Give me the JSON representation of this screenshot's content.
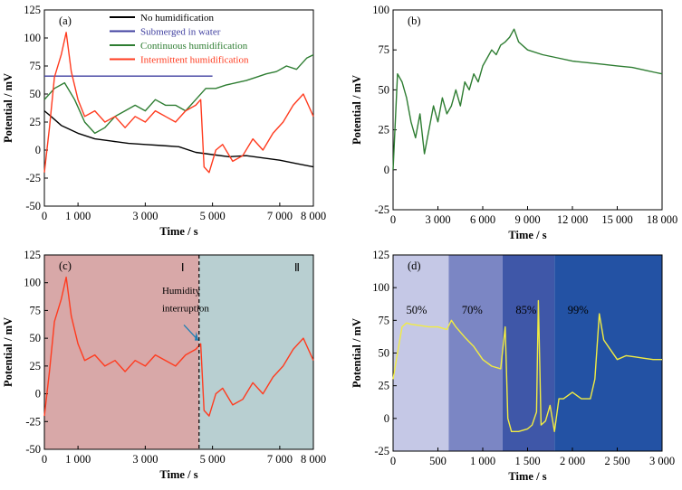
{
  "chart_data": [
    {
      "type": "line",
      "panel_label": "(a)",
      "xlabel": "Time / s",
      "ylabel": "Potential / mV",
      "xlim": [
        0,
        8000
      ],
      "ylim": [
        -50,
        125
      ],
      "xticks": [
        0,
        1000,
        3000,
        5000,
        7000,
        8000
      ],
      "xtick_labels": [
        "0",
        "1 000",
        "3 000",
        "5 000",
        "7 000",
        "8 000"
      ],
      "yticks": [
        -50,
        -25,
        0,
        25,
        50,
        75,
        100,
        125
      ],
      "legend_position": "top-right",
      "series": [
        {
          "name": "No humidification",
          "color": "#000000",
          "x": [
            0,
            200,
            500,
            1000,
            1500,
            2000,
            2500,
            3000,
            3500,
            4000,
            4500,
            5000,
            5500,
            6000,
            6500,
            7000,
            7500,
            8000
          ],
          "y": [
            35,
            30,
            22,
            15,
            10,
            8,
            6,
            5,
            4,
            3,
            -2,
            -4,
            -6,
            -5,
            -7,
            -9,
            -12,
            -15
          ]
        },
        {
          "name": "Submerged in water",
          "color": "#4040a0",
          "x": [
            0,
            5000
          ],
          "y": [
            66,
            66
          ]
        },
        {
          "name": "Continuous humidification",
          "color": "#2e7d32",
          "x": [
            0,
            300,
            600,
            900,
            1200,
            1500,
            1800,
            2100,
            2400,
            2700,
            3000,
            3300,
            3600,
            3900,
            4200,
            4500,
            4800,
            5100,
            5400,
            5700,
            6000,
            6300,
            6600,
            6900,
            7200,
            7500,
            7800,
            8000
          ],
          "y": [
            45,
            55,
            60,
            45,
            25,
            15,
            20,
            30,
            35,
            40,
            35,
            45,
            40,
            40,
            35,
            45,
            55,
            55,
            58,
            60,
            62,
            65,
            68,
            70,
            75,
            72,
            82,
            85
          ]
        },
        {
          "name": "Intermittent humidification",
          "color": "#ff3b1f",
          "x": [
            0,
            150,
            300,
            500,
            650,
            800,
            1000,
            1200,
            1500,
            1800,
            2100,
            2400,
            2700,
            3000,
            3300,
            3600,
            3900,
            4200,
            4500,
            4650,
            4750,
            4900,
            5100,
            5300,
            5600,
            5900,
            6200,
            6500,
            6800,
            7100,
            7400,
            7700,
            8000
          ],
          "y": [
            -20,
            20,
            65,
            85,
            105,
            70,
            45,
            30,
            35,
            25,
            30,
            20,
            30,
            25,
            35,
            30,
            25,
            35,
            40,
            45,
            -15,
            -20,
            0,
            5,
            -10,
            -5,
            10,
            0,
            15,
            25,
            40,
            50,
            30
          ]
        }
      ]
    },
    {
      "type": "line",
      "panel_label": "(b)",
      "xlabel": "Time / s",
      "ylabel": "Potential / mV",
      "xlim": [
        0,
        18000
      ],
      "ylim": [
        -25,
        100
      ],
      "xticks": [
        0,
        3000,
        6000,
        9000,
        12000,
        15000,
        18000
      ],
      "xtick_labels": [
        "0",
        "3 000",
        "6 000",
        "9 000",
        "12 000",
        "15 000",
        "18 000"
      ],
      "yticks": [
        -25,
        0,
        25,
        50,
        75,
        100
      ],
      "series": [
        {
          "name": "",
          "color": "#2e7d32",
          "x": [
            0,
            300,
            600,
            900,
            1200,
            1500,
            1800,
            2100,
            2400,
            2700,
            3000,
            3300,
            3600,
            3900,
            4200,
            4500,
            4800,
            5100,
            5400,
            5700,
            6000,
            6300,
            6600,
            6900,
            7200,
            7500,
            7800,
            8100,
            8400,
            9000,
            10000,
            11000,
            12000,
            13000,
            14000,
            15000,
            16000,
            17000,
            17500,
            18000
          ],
          "y": [
            0,
            60,
            55,
            45,
            30,
            20,
            35,
            10,
            25,
            40,
            30,
            45,
            35,
            40,
            50,
            40,
            55,
            50,
            60,
            55,
            65,
            70,
            75,
            72,
            78,
            80,
            83,
            88,
            80,
            75,
            72,
            70,
            68,
            67,
            66,
            65,
            64,
            62,
            61,
            60
          ]
        }
      ]
    },
    {
      "type": "line",
      "panel_label": "(c)",
      "xlabel": "Time / s",
      "ylabel": "Potential / mV",
      "xlim": [
        0,
        8000
      ],
      "ylim": [
        -50,
        125
      ],
      "xticks": [
        0,
        1000,
        3000,
        5000,
        7000,
        8000
      ],
      "xtick_labels": [
        "0",
        "1 000",
        "3 000",
        "5 000",
        "7 000",
        "8 000"
      ],
      "yticks": [
        -50,
        -25,
        0,
        25,
        50,
        75,
        100,
        125
      ],
      "regions": [
        {
          "label": "Ⅰ",
          "from": 0,
          "to": 4600,
          "color": "#d8a8a8"
        },
        {
          "label": "Ⅱ",
          "from": 4600,
          "to": 8000,
          "color": "#b8cfd1"
        }
      ],
      "annotation": "Humidity interruption",
      "series": [
        {
          "name": "",
          "color": "#ff3b1f",
          "x": [
            0,
            150,
            300,
            500,
            650,
            800,
            1000,
            1200,
            1500,
            1800,
            2100,
            2400,
            2700,
            3000,
            3300,
            3600,
            3900,
            4200,
            4500,
            4650,
            4750,
            4900,
            5100,
            5300,
            5600,
            5900,
            6200,
            6500,
            6800,
            7100,
            7400,
            7700,
            8000
          ],
          "y": [
            -20,
            20,
            65,
            85,
            105,
            70,
            45,
            30,
            35,
            25,
            30,
            20,
            30,
            25,
            35,
            30,
            25,
            35,
            40,
            45,
            -15,
            -20,
            0,
            5,
            -10,
            -5,
            10,
            0,
            15,
            25,
            40,
            50,
            30
          ]
        }
      ]
    },
    {
      "type": "line",
      "panel_label": "(d)",
      "xlabel": "Time / s",
      "ylabel": "Potential / mV",
      "xlim": [
        0,
        3000
      ],
      "ylim": [
        -25,
        125
      ],
      "xticks": [
        0,
        500,
        1000,
        1500,
        2000,
        2500,
        3000
      ],
      "xtick_labels": [
        "0",
        "500",
        "1 000",
        "1 500",
        "2 000",
        "2 500",
        "3 000"
      ],
      "yticks": [
        -25,
        0,
        25,
        50,
        75,
        100,
        125
      ],
      "regions": [
        {
          "label": "50%",
          "from": 0,
          "to": 620,
          "color": "#c5c8e6"
        },
        {
          "label": "70%",
          "from": 620,
          "to": 1220,
          "color": "#7b86c4"
        },
        {
          "label": "85%",
          "from": 1220,
          "to": 1800,
          "color": "#3f57a8"
        },
        {
          "label": "99%",
          "from": 1800,
          "to": 3000,
          "color": "#2352a4"
        }
      ],
      "series": [
        {
          "name": "",
          "color": "#f2ec42",
          "x": [
            0,
            50,
            100,
            150,
            200,
            300,
            400,
            500,
            600,
            650,
            700,
            800,
            900,
            1000,
            1100,
            1200,
            1250,
            1280,
            1320,
            1400,
            1500,
            1550,
            1600,
            1620,
            1650,
            1700,
            1750,
            1800,
            1850,
            1900,
            2000,
            2100,
            2200,
            2250,
            2300,
            2350,
            2400,
            2500,
            2600,
            2700,
            2800,
            2900,
            3000
          ],
          "y": [
            30,
            50,
            70,
            73,
            72,
            71,
            70,
            70,
            68,
            75,
            70,
            62,
            55,
            45,
            40,
            38,
            70,
            0,
            -10,
            -10,
            -8,
            -5,
            5,
            90,
            -5,
            -2,
            10,
            -10,
            15,
            15,
            20,
            15,
            15,
            30,
            80,
            60,
            55,
            45,
            48,
            47,
            46,
            45,
            45
          ]
        }
      ]
    }
  ]
}
